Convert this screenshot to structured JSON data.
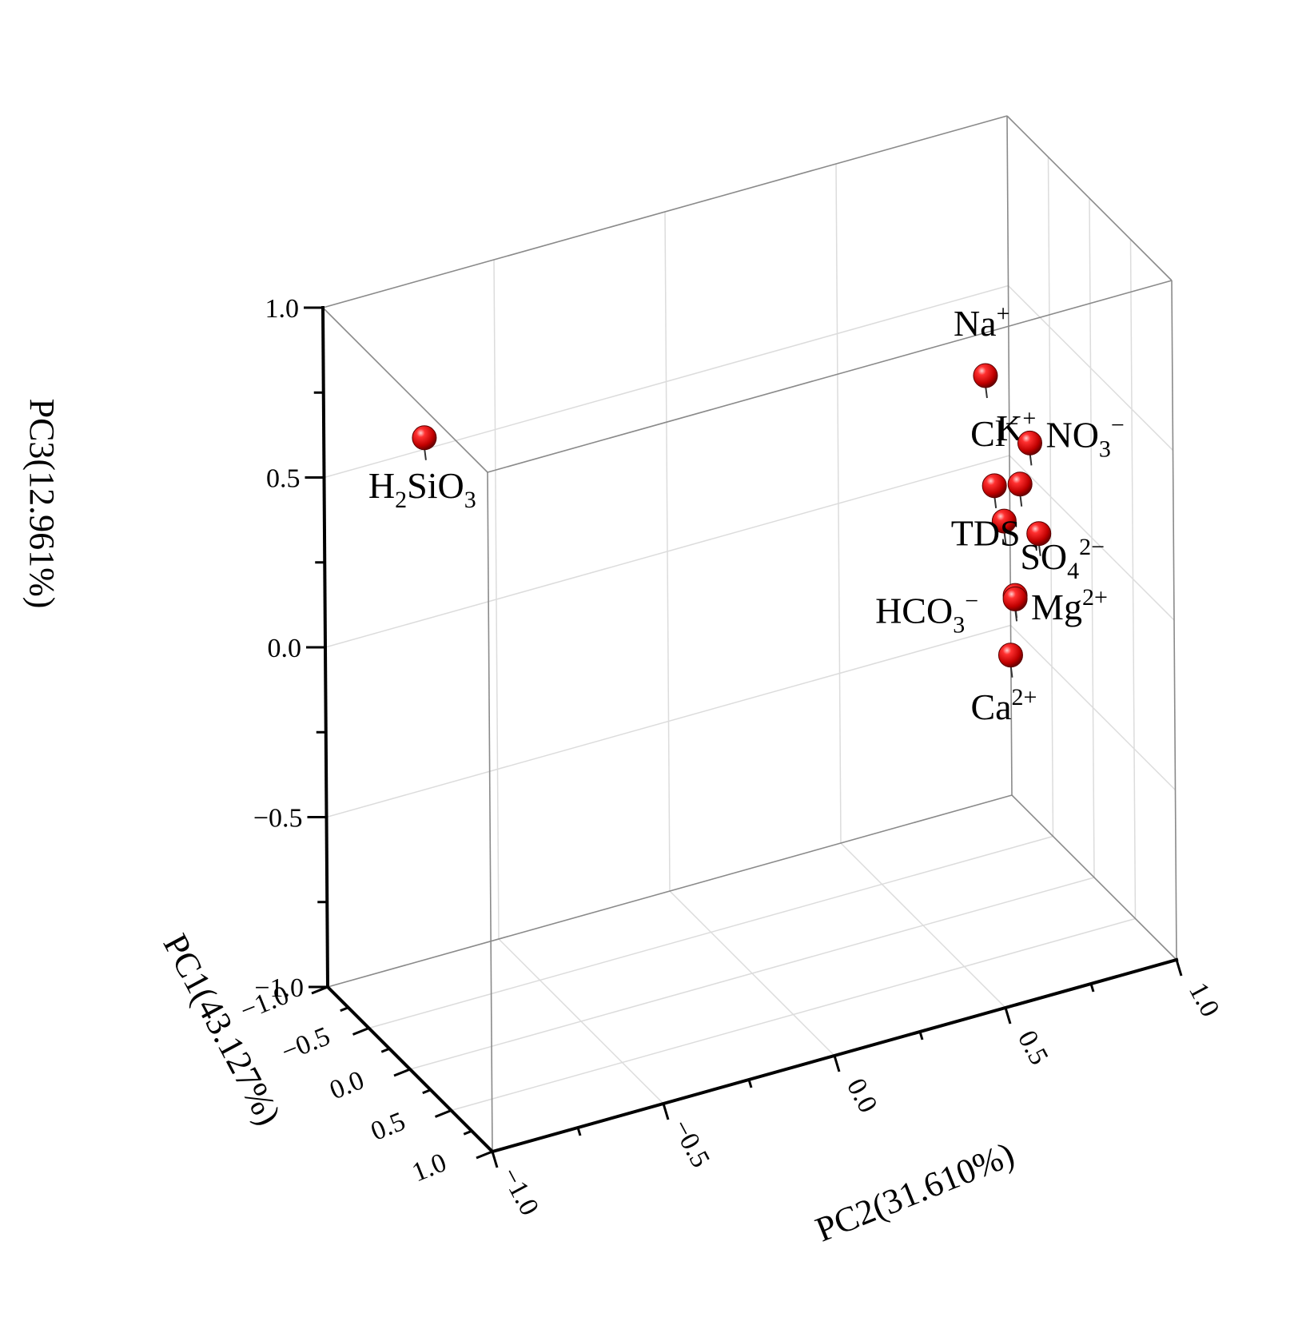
{
  "chart_data": {
    "type": "scatter",
    "projection": "3d",
    "title": "",
    "xlabel": "PC1(43.127%)",
    "ylabel": "PC2(31.610%)",
    "zlabel": "PC3(12.961%)",
    "xlim": [
      -1.0,
      1.0
    ],
    "ylim": [
      -1.0,
      1.0
    ],
    "zlim": [
      -1.0,
      1.0
    ],
    "grid": true,
    "marker_color": "#d40000",
    "x_ticks": [
      {
        "value": -1.0,
        "label": "−1.0"
      },
      {
        "value": -0.5,
        "label": "−0.5"
      },
      {
        "value": 0.0,
        "label": "0.0"
      },
      {
        "value": 0.5,
        "label": "0.5"
      },
      {
        "value": 1.0,
        "label": "1.0"
      }
    ],
    "y_ticks": [
      {
        "value": -1.0,
        "label": "−1.0"
      },
      {
        "value": -0.5,
        "label": "−0.5"
      },
      {
        "value": 0.0,
        "label": "0.0"
      },
      {
        "value": 0.5,
        "label": "0.5"
      },
      {
        "value": 1.0,
        "label": "1.0"
      }
    ],
    "z_ticks": [
      {
        "value": -1.0,
        "label": "−1.0"
      },
      {
        "value": -0.5,
        "label": "−0.5"
      },
      {
        "value": 0.0,
        "label": "0.0"
      },
      {
        "value": 0.5,
        "label": "0.5"
      },
      {
        "value": 1.0,
        "label": "1.0"
      }
    ],
    "points": [
      {
        "name": "H2SiO3",
        "label": [
          {
            "t": "H"
          },
          {
            "t": "2",
            "s": "sub"
          },
          {
            "t": "SiO"
          },
          {
            "t": "3",
            "s": "sub"
          }
        ],
        "x": 0.02,
        "y": -0.95,
        "z": 0.85
      },
      {
        "name": "Na+",
        "label": [
          {
            "t": "Na"
          },
          {
            "t": "+",
            "s": "sup"
          }
        ],
        "x": 0.6,
        "y": 0.55,
        "z": 0.75
      },
      {
        "name": "Cl-",
        "label": [
          {
            "t": "Cl"
          },
          {
            "t": "−",
            "s": "sup"
          }
        ],
        "x": 0.7,
        "y": 0.55,
        "z": 0.45
      },
      {
        "name": "K+",
        "label": [
          {
            "t": "K"
          },
          {
            "t": "+",
            "s": "sup"
          }
        ],
        "x": 0.72,
        "y": 0.62,
        "z": 0.44
      },
      {
        "name": "NO3-",
        "label": [
          {
            "t": "NO"
          },
          {
            "t": "3",
            "s": "sub"
          },
          {
            "t": "−",
            "s": "sup"
          }
        ],
        "x": 0.55,
        "y": 0.69,
        "z": 0.5
      },
      {
        "name": "SO4 2-",
        "label": [
          {
            "t": "SO"
          },
          {
            "t": "4",
            "s": "sub"
          },
          {
            "t": "2−",
            "s": "sup"
          }
        ],
        "x": 0.9,
        "y": 0.53,
        "z": 0.4
      },
      {
        "name": "TDS",
        "label": [
          {
            "t": "TDS"
          }
        ],
        "x": 0.82,
        "y": 0.65,
        "z": 0.31
      },
      {
        "name": "Mg2+",
        "label": [
          {
            "t": "Mg"
          },
          {
            "t": "2+",
            "s": "sup"
          }
        ],
        "x": 0.86,
        "y": 0.57,
        "z": 0.16
      },
      {
        "name": "HCO3-",
        "label": [
          {
            "t": "HCO"
          },
          {
            "t": "3",
            "s": "sub"
          },
          {
            "t": "−",
            "s": "sup"
          }
        ],
        "x": 0.86,
        "y": 0.57,
        "z": 0.15
      },
      {
        "name": "Ca2+",
        "label": [
          {
            "t": "Ca"
          },
          {
            "t": "2+",
            "s": "sup"
          }
        ],
        "x": 0.8,
        "y": 0.57,
        "z": -0.03
      }
    ]
  }
}
